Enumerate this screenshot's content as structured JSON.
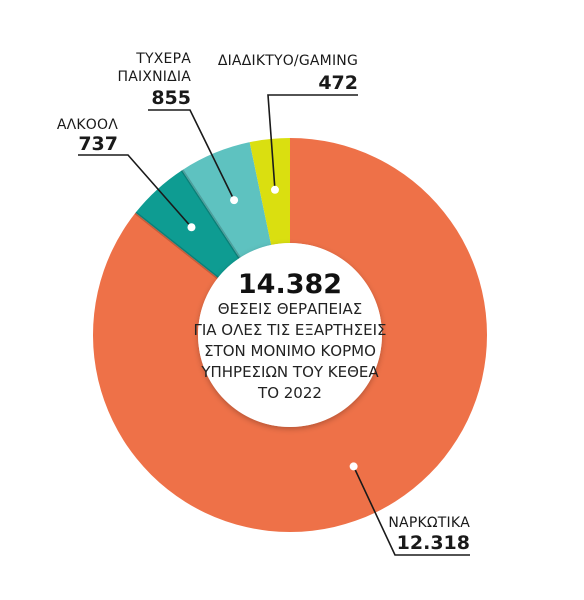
{
  "chart_data": {
    "type": "pie",
    "donut": true,
    "slices": [
      {
        "key": "drugs",
        "label": "ΝΑΡΚΩΤΙΚΑ",
        "value": 12318,
        "value_label": "12.318",
        "color": "#ee7148"
      },
      {
        "key": "alcohol",
        "label": "ΑΛΚΟΟΛ",
        "value": 737,
        "value_label": "737",
        "color": "#0e9c92"
      },
      {
        "key": "gambling",
        "label": "ΤΥΧΕΡΑ ΠΑΙΧΝΙΔΙΑ",
        "label_lines": [
          "ΤΥΧΕΡΑ",
          "ΠΑΙΧΝΙΔΙΑ"
        ],
        "value": 855,
        "value_label": "855",
        "color": "#5ec2c0"
      },
      {
        "key": "internet",
        "label": "ΔΙΑΔΙΚΤΥΟ/GAMING",
        "value": 472,
        "value_label": "472",
        "color": "#dadf10"
      }
    ],
    "center": {
      "total": "14.382",
      "lines": [
        "ΘΕΣΕΙΣ ΘΕΡΑΠΕΙΑΣ",
        "ΓΙΑ ΟΛΕΣ ΤΙΣ ΕΞΑΡΤΗΣΕΙΣ",
        "ΣΤΟΝ ΜΟΝΙΜΟ ΚΟΡΜΟ",
        "ΥΠΗΡΕΣΙΩΝ ΤΟΥ ΚΕΘΕΑ",
        "ΤΟ 2022"
      ]
    }
  }
}
